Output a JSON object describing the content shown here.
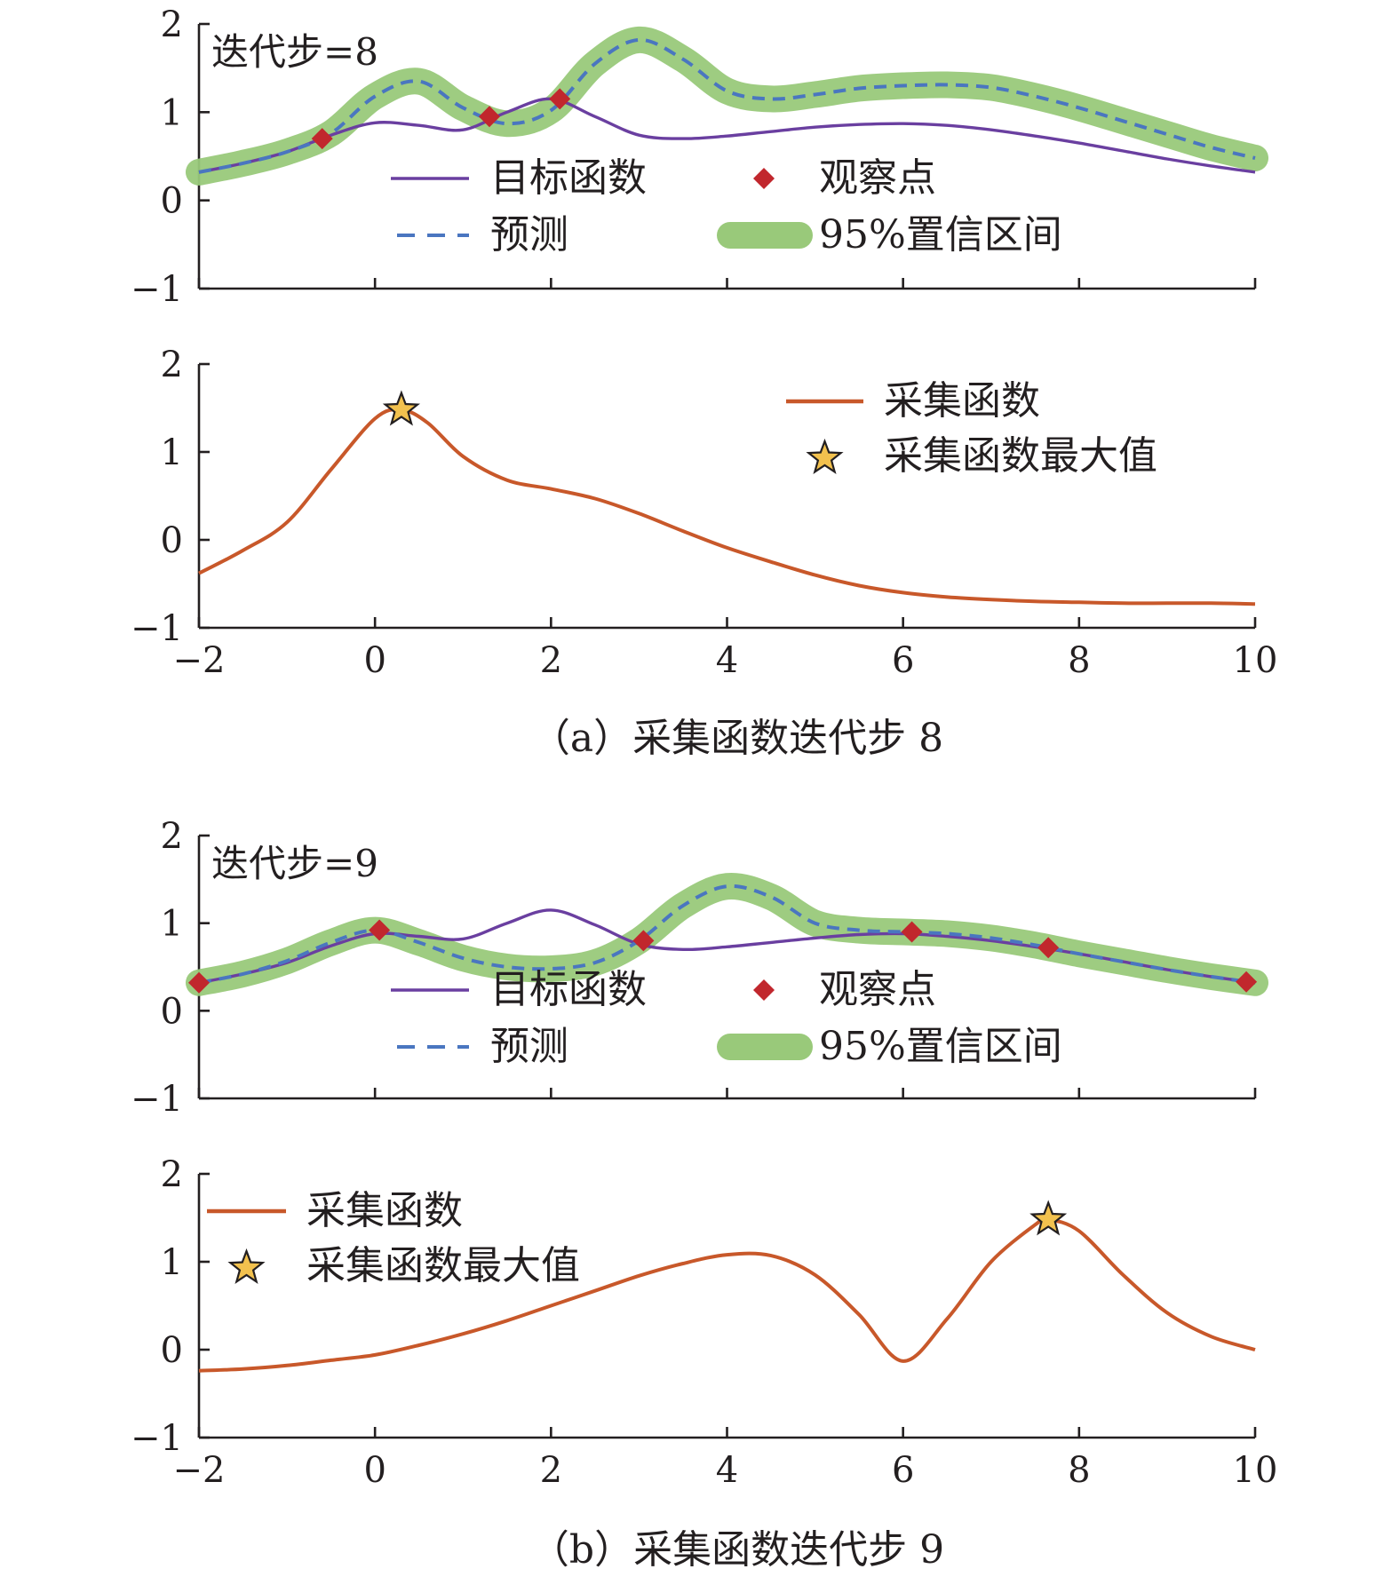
{
  "figure": {
    "captions": [
      "（a）采集函数迭代步 8",
      "（b）采集函数迭代步 9"
    ]
  },
  "colors": {
    "target": "#6a3fa0",
    "prediction": "#4a76c0",
    "confidence": "#99c97a",
    "observation": "#c1272d",
    "acquisition": "#c8582a",
    "star_fill": "#f2c14e",
    "axis": "#231f20"
  },
  "chart_data": [
    {
      "type": "line",
      "step_label": "迭代步=8",
      "xlim": [
        -2,
        10
      ],
      "ylim": [
        -1,
        2
      ],
      "x_ticks": [
        -2,
        0,
        2,
        4,
        6,
        8,
        10
      ],
      "y_ticks": [
        -1,
        0,
        1,
        2
      ],
      "y_tick_labels": [
        "−1",
        "0",
        "1",
        "2"
      ],
      "x_tick_labels": [],
      "legend": {
        "target": "目标函数",
        "observation": "观察点",
        "prediction": "预测",
        "confidence": "95%置信区间"
      },
      "series": [
        {
          "name": "目标函数",
          "role": "target",
          "x": [
            -2,
            -1.5,
            -1,
            -0.5,
            0,
            0.5,
            1,
            1.5,
            2,
            2.5,
            3,
            3.5,
            4,
            4.5,
            5,
            5.5,
            6,
            6.5,
            7,
            7.5,
            8,
            8.5,
            9,
            9.5,
            10
          ],
          "y": [
            0.32,
            0.42,
            0.55,
            0.74,
            0.88,
            0.85,
            0.8,
            1.0,
            1.15,
            0.95,
            0.74,
            0.7,
            0.73,
            0.78,
            0.83,
            0.86,
            0.87,
            0.85,
            0.8,
            0.73,
            0.65,
            0.56,
            0.47,
            0.39,
            0.32
          ]
        },
        {
          "name": "预测",
          "role": "prediction",
          "x": [
            -2,
            -1.5,
            -1,
            -0.5,
            0,
            0.5,
            1,
            1.5,
            2,
            2.5,
            3,
            3.5,
            4,
            4.5,
            5,
            5.5,
            6,
            6.5,
            7,
            7.5,
            8,
            8.5,
            9,
            9.5,
            10
          ],
          "y": [
            0.32,
            0.42,
            0.55,
            0.76,
            1.18,
            1.35,
            1.05,
            0.87,
            1.02,
            1.55,
            1.82,
            1.6,
            1.24,
            1.15,
            1.2,
            1.27,
            1.3,
            1.31,
            1.28,
            1.18,
            1.05,
            0.9,
            0.75,
            0.6,
            0.48
          ]
        },
        {
          "name": "观察点",
          "role": "observation",
          "x": [
            -0.6,
            1.3,
            2.1
          ],
          "y": [
            0.7,
            0.95,
            1.15
          ]
        }
      ],
      "confidence_band": {
        "role": "confidence"
      }
    },
    {
      "type": "line",
      "xlim": [
        -2,
        10
      ],
      "ylim": [
        -1,
        2
      ],
      "x_ticks": [
        -2,
        0,
        2,
        4,
        6,
        8,
        10
      ],
      "y_ticks": [
        -1,
        0,
        1,
        2
      ],
      "y_tick_labels": [
        "−1",
        "0",
        "1",
        "2"
      ],
      "x_tick_labels": [
        "−2",
        "0",
        "2",
        "4",
        "6",
        "8",
        "10"
      ],
      "legend": {
        "acquisition": "采集函数",
        "maximum": "采集函数最大值"
      },
      "legend_position": "top-right",
      "series": [
        {
          "name": "采集函数",
          "role": "acquisition",
          "x": [
            -2,
            -1.5,
            -1,
            -0.5,
            0,
            0.3,
            0.6,
            1,
            1.5,
            2,
            2.5,
            3,
            3.5,
            4,
            4.5,
            5,
            5.5,
            6,
            6.5,
            7,
            7.5,
            8,
            8.5,
            9,
            9.5,
            10
          ],
          "y": [
            -0.38,
            -0.12,
            0.2,
            0.8,
            1.38,
            1.48,
            1.33,
            0.95,
            0.68,
            0.58,
            0.47,
            0.3,
            0.1,
            -0.09,
            -0.25,
            -0.4,
            -0.52,
            -0.6,
            -0.65,
            -0.68,
            -0.7,
            -0.71,
            -0.72,
            -0.72,
            -0.72,
            -0.73
          ]
        },
        {
          "name": "采集函数最大值",
          "role": "maximum",
          "x": [
            0.3
          ],
          "y": [
            1.48
          ]
        }
      ]
    },
    {
      "type": "line",
      "step_label": "迭代步=9",
      "xlim": [
        -2,
        10
      ],
      "ylim": [
        -1,
        2
      ],
      "x_ticks": [
        -2,
        0,
        2,
        4,
        6,
        8,
        10
      ],
      "y_ticks": [
        -1,
        0,
        1,
        2
      ],
      "y_tick_labels": [
        "−1",
        "0",
        "1",
        "2"
      ],
      "x_tick_labels": [],
      "legend": {
        "target": "目标函数",
        "observation": "观察点",
        "prediction": "预测",
        "confidence": "95%置信区间"
      },
      "series": [
        {
          "name": "目标函数",
          "role": "target",
          "x": [
            -2,
            -1.5,
            -1,
            -0.5,
            0,
            0.5,
            1,
            1.5,
            2,
            2.5,
            3,
            3.5,
            4,
            4.5,
            5,
            5.5,
            6,
            6.5,
            7,
            7.5,
            8,
            8.5,
            9,
            9.5,
            10
          ],
          "y": [
            0.32,
            0.42,
            0.55,
            0.74,
            0.88,
            0.85,
            0.82,
            1.0,
            1.15,
            0.98,
            0.76,
            0.7,
            0.73,
            0.78,
            0.83,
            0.87,
            0.88,
            0.85,
            0.8,
            0.73,
            0.65,
            0.56,
            0.47,
            0.39,
            0.32
          ]
        },
        {
          "name": "预测",
          "role": "prediction",
          "x": [
            -2,
            -1.5,
            -1,
            -0.5,
            0,
            0.5,
            1,
            1.5,
            2,
            2.5,
            3,
            3.5,
            4,
            4.5,
            5,
            5.5,
            6,
            6.5,
            7,
            7.5,
            8,
            8.5,
            9,
            9.5,
            10
          ],
          "y": [
            0.32,
            0.42,
            0.57,
            0.78,
            0.92,
            0.78,
            0.6,
            0.5,
            0.48,
            0.55,
            0.8,
            1.2,
            1.42,
            1.3,
            1.0,
            0.92,
            0.9,
            0.88,
            0.83,
            0.75,
            0.65,
            0.56,
            0.47,
            0.39,
            0.32
          ]
        },
        {
          "name": "观察点",
          "role": "observation",
          "x": [
            -2,
            0.05,
            3.05,
            6.1,
            7.65,
            9.9
          ],
          "y": [
            0.32,
            0.92,
            0.8,
            0.9,
            0.72,
            0.33
          ]
        }
      ],
      "confidence_band": {
        "role": "confidence"
      }
    },
    {
      "type": "line",
      "xlim": [
        -2,
        10
      ],
      "ylim": [
        -1,
        2
      ],
      "x_ticks": [
        -2,
        0,
        2,
        4,
        6,
        8,
        10
      ],
      "y_ticks": [
        -1,
        0,
        1,
        2
      ],
      "y_tick_labels": [
        "−1",
        "0",
        "1",
        "2"
      ],
      "x_tick_labels": [
        "−2",
        "0",
        "2",
        "4",
        "6",
        "8",
        "10"
      ],
      "legend": {
        "acquisition": "采集函数",
        "maximum": "采集函数最大值"
      },
      "legend_position": "top-left",
      "series": [
        {
          "name": "采集函数",
          "role": "acquisition",
          "x": [
            -2,
            -1.5,
            -1,
            -0.5,
            0,
            0.5,
            1,
            1.5,
            2,
            2.5,
            3,
            3.5,
            4,
            4.5,
            5,
            5.5,
            6,
            6.5,
            7,
            7.5,
            7.65,
            8,
            8.5,
            9,
            9.5,
            10
          ],
          "y": [
            -0.24,
            -0.22,
            -0.18,
            -0.12,
            -0.06,
            0.05,
            0.18,
            0.33,
            0.5,
            0.67,
            0.84,
            0.98,
            1.08,
            1.07,
            0.85,
            0.4,
            -0.13,
            0.35,
            1.0,
            1.42,
            1.48,
            1.35,
            0.85,
            0.42,
            0.15,
            0.0
          ]
        },
        {
          "name": "采集函数最大值",
          "role": "maximum",
          "x": [
            7.65
          ],
          "y": [
            1.48
          ]
        }
      ]
    }
  ]
}
